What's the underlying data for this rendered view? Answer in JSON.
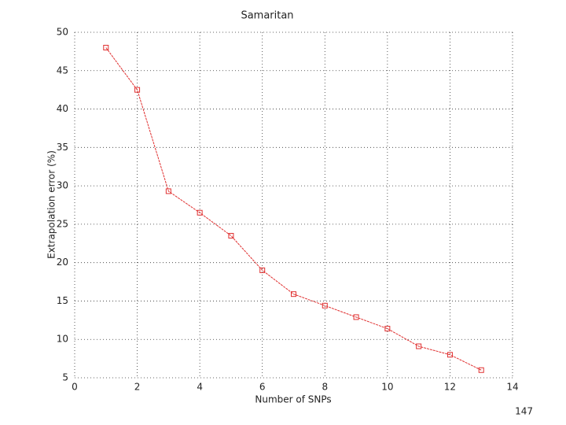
{
  "chart_data": {
    "type": "line",
    "title": "Samaritan",
    "x_label": "Number of SNPs",
    "y_label": "Extrapolation error (%)",
    "x": [
      1,
      2,
      3,
      4,
      5,
      6,
      7,
      8,
      9,
      10,
      11,
      12,
      13
    ],
    "series": [
      {
        "name": "Samaritan",
        "color": "#e03030",
        "values": [
          48,
          42.5,
          29.3,
          26.5,
          23.5,
          19,
          15.9,
          14.4,
          12.9,
          11.4,
          9.1,
          8,
          6
        ]
      }
    ],
    "xlim": [
      0,
      14
    ],
    "xticks": [
      0,
      2,
      4,
      6,
      8,
      10,
      12,
      14
    ],
    "ylim": [
      5,
      50
    ],
    "yticks": [
      5,
      10,
      15,
      20,
      25,
      30,
      35,
      40,
      45,
      50
    ],
    "grid": true
  },
  "page_number": "147"
}
